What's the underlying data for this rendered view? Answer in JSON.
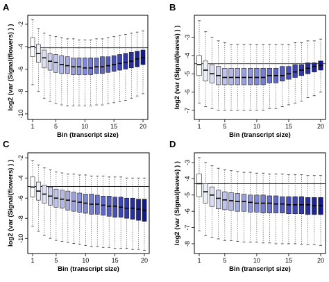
{
  "chart_data": [
    {
      "panel": "A",
      "type": "box",
      "xlabel": "Bin (transcript size)",
      "ylabel": "log2 (var (Signal(flowers) ) )",
      "x": [
        1,
        2,
        3,
        4,
        5,
        6,
        7,
        8,
        9,
        10,
        11,
        12,
        13,
        14,
        15,
        16,
        17,
        18,
        19,
        20
      ],
      "x_ticks": [
        1,
        5,
        10,
        15,
        20
      ],
      "y_ticks": [
        -2,
        -4,
        -6,
        -8,
        -10
      ],
      "ylim": [
        -10.5,
        -1.2
      ],
      "hline": -4.1,
      "median": [
        -4.0,
        -4.6,
        -5.0,
        -5.3,
        -5.4,
        -5.6,
        -5.7,
        -5.8,
        -5.8,
        -5.9,
        -5.9,
        -5.8,
        -5.8,
        -5.7,
        -5.6,
        -5.5,
        -5.4,
        -5.3,
        -5.1,
        -5.0
      ],
      "q1": [
        -4.9,
        -5.4,
        -5.9,
        -6.1,
        -6.3,
        -6.4,
        -6.4,
        -6.5,
        -6.5,
        -6.5,
        -6.5,
        -6.4,
        -6.4,
        -6.3,
        -6.2,
        -6.1,
        -6.0,
        -5.9,
        -5.8,
        -5.6
      ],
      "q3": [
        -3.2,
        -3.8,
        -4.3,
        -4.6,
        -4.7,
        -4.8,
        -4.9,
        -5.0,
        -5.0,
        -5.0,
        -5.0,
        -5.0,
        -4.9,
        -4.9,
        -4.8,
        -4.7,
        -4.6,
        -4.5,
        -4.4,
        -4.3
      ],
      "whisker_low": [
        -7.4,
        -8.0,
        -8.6,
        -8.9,
        -9.1,
        -9.2,
        -9.3,
        -9.3,
        -9.3,
        -9.3,
        -9.3,
        -9.2,
        -9.2,
        -9.1,
        -9.0,
        -8.9,
        -8.8,
        -8.6,
        -8.4,
        -8.2
      ],
      "whisker_high": [
        -1.6,
        -2.4,
        -2.8,
        -3.0,
        -3.1,
        -3.2,
        -3.3,
        -3.3,
        -3.4,
        -3.4,
        -3.4,
        -3.3,
        -3.3,
        -3.2,
        -3.1,
        -3.0,
        -2.9,
        -2.8,
        -2.7,
        -2.6
      ],
      "fill_colors": [
        "#ffffff",
        "#eceef8",
        "#dcdff3",
        "#cdd1ee",
        "#c0c4ea",
        "#b3b8e6",
        "#a6ace2",
        "#9aa0dd",
        "#8e95d9",
        "#8289d4",
        "#767ecf",
        "#6a72ca",
        "#5f67c4",
        "#535cbf",
        "#4850b8",
        "#3d45b1",
        "#323aa8",
        "#272f9f",
        "#1d2594",
        "#121a88"
      ]
    },
    {
      "panel": "B",
      "type": "box",
      "xlabel": "Bin (transcript size)",
      "ylabel": "log2 (var (Signal(leaves) ) )",
      "x": [
        1,
        2,
        3,
        4,
        5,
        6,
        7,
        8,
        9,
        10,
        11,
        12,
        13,
        14,
        15,
        16,
        17,
        18,
        19,
        20
      ],
      "x_ticks": [
        1,
        5,
        10,
        15,
        20
      ],
      "y_ticks": [
        -3,
        -4,
        -5,
        -6,
        -7
      ],
      "ylim": [
        -7.5,
        -1.8
      ],
      "hline": -4.45,
      "median": [
        -4.5,
        -4.8,
        -5.0,
        -5.1,
        -5.2,
        -5.2,
        -5.2,
        -5.2,
        -5.2,
        -5.2,
        -5.2,
        -5.1,
        -5.1,
        -5.1,
        -5.0,
        -4.9,
        -4.8,
        -4.7,
        -4.6,
        -4.55
      ],
      "q1": [
        -5.1,
        -5.4,
        -5.5,
        -5.6,
        -5.6,
        -5.6,
        -5.6,
        -5.6,
        -5.6,
        -5.6,
        -5.6,
        -5.5,
        -5.5,
        -5.4,
        -5.3,
        -5.2,
        -5.1,
        -5.0,
        -4.9,
        -4.8
      ],
      "q3": [
        -4.0,
        -4.3,
        -4.5,
        -4.6,
        -4.7,
        -4.7,
        -4.7,
        -4.7,
        -4.7,
        -4.7,
        -4.7,
        -4.7,
        -4.7,
        -4.6,
        -4.6,
        -4.5,
        -4.5,
        -4.4,
        -4.4,
        -4.3
      ],
      "whisker_low": [
        -6.6,
        -6.8,
        -6.9,
        -7.0,
        -7.0,
        -7.0,
        -7.0,
        -7.0,
        -7.0,
        -7.0,
        -7.0,
        -6.9,
        -6.9,
        -6.8,
        -6.7,
        -6.6,
        -6.5,
        -6.3,
        -6.2,
        -6.0
      ],
      "whisker_high": [
        -2.1,
        -2.7,
        -3.0,
        -3.2,
        -3.3,
        -3.4,
        -3.4,
        -3.4,
        -3.4,
        -3.4,
        -3.4,
        -3.4,
        -3.4,
        -3.4,
        -3.4,
        -3.3,
        -3.3,
        -3.2,
        -3.2,
        -3.1
      ],
      "fill_colors": [
        "#ffffff",
        "#eceef8",
        "#dcdff3",
        "#cdd1ee",
        "#c0c4ea",
        "#b3b8e6",
        "#a6ace2",
        "#9aa0dd",
        "#8e95d9",
        "#8289d4",
        "#767ecf",
        "#6a72ca",
        "#5f67c4",
        "#535cbf",
        "#4850b8",
        "#3d45b1",
        "#323aa8",
        "#272f9f",
        "#1d2594",
        "#121a88"
      ]
    },
    {
      "panel": "C",
      "type": "box",
      "xlabel": "Bin (transcript size)",
      "ylabel": "log2 (var (Signal(flowers) ) )",
      "x": [
        1,
        2,
        3,
        4,
        5,
        6,
        7,
        8,
        9,
        10,
        11,
        12,
        13,
        14,
        15,
        16,
        17,
        18,
        19,
        20
      ],
      "x_ticks": [
        1,
        5,
        10,
        15,
        20
      ],
      "y_ticks": [
        -2,
        -4,
        -6,
        -8,
        -10
      ],
      "ylim": [
        -11.5,
        -1.5
      ],
      "hline": -4.85,
      "median": [
        -4.9,
        -5.3,
        -5.6,
        -5.8,
        -6.0,
        -6.1,
        -6.2,
        -6.3,
        -6.4,
        -6.5,
        -6.6,
        -6.6,
        -6.7,
        -6.8,
        -6.8,
        -6.9,
        -7.0,
        -7.0,
        -7.1,
        -7.2
      ],
      "q1": [
        -5.9,
        -6.2,
        -6.5,
        -6.7,
        -6.9,
        -7.0,
        -7.2,
        -7.3,
        -7.4,
        -7.5,
        -7.6,
        -7.6,
        -7.7,
        -7.8,
        -7.9,
        -7.9,
        -8.0,
        -8.1,
        -8.2,
        -8.3
      ],
      "q3": [
        -3.9,
        -4.4,
        -4.7,
        -4.9,
        -5.1,
        -5.2,
        -5.3,
        -5.4,
        -5.5,
        -5.6,
        -5.6,
        -5.7,
        -5.8,
        -5.8,
        -5.9,
        -5.9,
        -6.0,
        -6.0,
        -6.1,
        -6.1
      ],
      "whisker_low": [
        -8.8,
        -9.3,
        -9.7,
        -10.0,
        -10.2,
        -10.3,
        -10.4,
        -10.5,
        -10.6,
        -10.7,
        -10.8,
        -10.8,
        -10.9,
        -10.9,
        -11.0,
        -11.0,
        -11.0,
        -11.1,
        -11.1,
        -11.2
      ],
      "whisker_high": [
        -2.3,
        -2.7,
        -3.0,
        -3.2,
        -3.4,
        -3.5,
        -3.6,
        -3.6,
        -3.7,
        -3.7,
        -3.8,
        -3.8,
        -3.8,
        -3.9,
        -3.9,
        -3.9,
        -4.0,
        -4.0,
        -4.0,
        -4.0
      ],
      "fill_colors": [
        "#ffffff",
        "#eceef8",
        "#dcdff3",
        "#cdd1ee",
        "#c0c4ea",
        "#b3b8e6",
        "#a6ace2",
        "#9aa0dd",
        "#8e95d9",
        "#8289d4",
        "#767ecf",
        "#6a72ca",
        "#5f67c4",
        "#535cbf",
        "#4850b8",
        "#3d45b1",
        "#323aa8",
        "#272f9f",
        "#1d2594",
        "#121a88"
      ]
    },
    {
      "panel": "D",
      "type": "box",
      "xlabel": "Bin (transcript size)",
      "ylabel": "log2 (var (Signal(leaves) ) )",
      "x": [
        1,
        2,
        3,
        4,
        5,
        6,
        7,
        8,
        9,
        10,
        11,
        12,
        13,
        14,
        15,
        16,
        17,
        18,
        19,
        20
      ],
      "x_ticks": [
        1,
        5,
        10,
        15,
        20
      ],
      "y_ticks": [
        -3,
        -4,
        -5,
        -6,
        -7,
        -8
      ],
      "ylim": [
        -8.6,
        -2.4
      ],
      "hline": -4.3,
      "median": [
        -4.3,
        -4.8,
        -5.0,
        -5.2,
        -5.3,
        -5.35,
        -5.4,
        -5.4,
        -5.45,
        -5.5,
        -5.5,
        -5.5,
        -5.55,
        -5.55,
        -5.6,
        -5.6,
        -5.6,
        -5.6,
        -5.65,
        -5.65
      ],
      "q1": [
        -5.1,
        -5.5,
        -5.7,
        -5.85,
        -5.9,
        -5.95,
        -6.0,
        -6.0,
        -6.05,
        -6.05,
        -6.1,
        -6.1,
        -6.1,
        -6.1,
        -6.15,
        -6.15,
        -6.15,
        -6.2,
        -6.2,
        -6.2
      ],
      "q3": [
        -3.7,
        -4.3,
        -4.5,
        -4.7,
        -4.8,
        -4.85,
        -4.9,
        -4.95,
        -5.0,
        -5.0,
        -5.0,
        -5.05,
        -5.05,
        -5.1,
        -5.1,
        -5.1,
        -5.1,
        -5.15,
        -5.15,
        -5.15
      ],
      "whisker_low": [
        -7.2,
        -7.5,
        -7.6,
        -7.7,
        -7.8,
        -7.8,
        -7.85,
        -7.9,
        -7.9,
        -7.9,
        -7.95,
        -7.95,
        -8.0,
        -8.0,
        -8.0,
        -8.0,
        -8.05,
        -8.05,
        -8.05,
        -8.1
      ],
      "whisker_high": [
        -2.7,
        -3.0,
        -3.2,
        -3.35,
        -3.45,
        -3.5,
        -3.55,
        -3.6,
        -3.6,
        -3.65,
        -3.65,
        -3.7,
        -3.7,
        -3.7,
        -3.75,
        -3.75,
        -3.75,
        -3.8,
        -3.8,
        -3.8
      ],
      "fill_colors": [
        "#ffffff",
        "#eceef8",
        "#dcdff3",
        "#cdd1ee",
        "#c0c4ea",
        "#b3b8e6",
        "#a6ace2",
        "#9aa0dd",
        "#8e95d9",
        "#8289d4",
        "#767ecf",
        "#6a72ca",
        "#5f67c4",
        "#535cbf",
        "#4850b8",
        "#3d45b1",
        "#323aa8",
        "#272f9f",
        "#1d2594",
        "#121a88"
      ]
    }
  ]
}
